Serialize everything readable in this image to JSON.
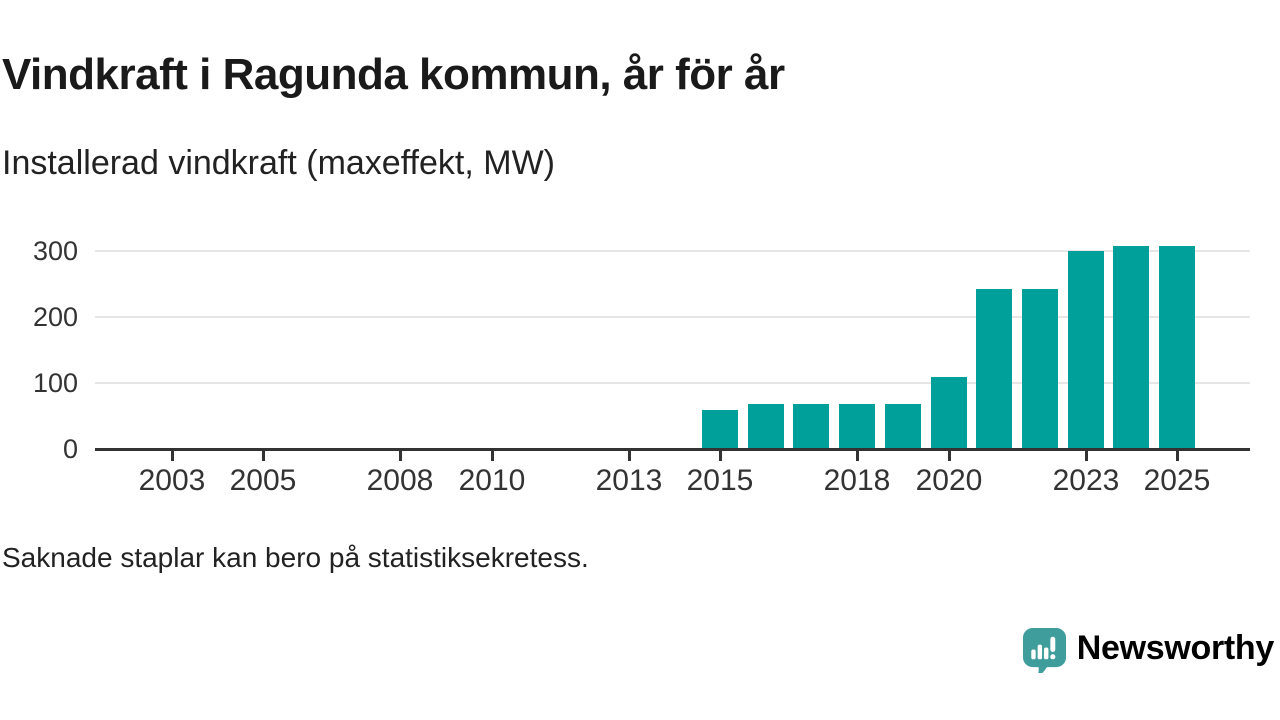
{
  "header": {
    "title": "Vindkraft i Ragunda kommun, år för år",
    "subtitle": "Installerad vindkraft (maxeffekt, MW)"
  },
  "chart_data": {
    "type": "bar",
    "title": "Vindkraft i Ragunda kommun, år för år",
    "subtitle": "Installerad vindkraft (maxeffekt, MW)",
    "unit": "MW",
    "ylabel": "Installerad vindkraft (maxeffekt, MW)",
    "xlabel": "",
    "categories": [
      2002,
      2003,
      2004,
      2005,
      2006,
      2007,
      2008,
      2009,
      2010,
      2011,
      2012,
      2013,
      2014,
      2015,
      2016,
      2017,
      2018,
      2019,
      2020,
      2021,
      2022,
      2023,
      2024,
      2025
    ],
    "values": [
      null,
      null,
      null,
      null,
      null,
      null,
      null,
      null,
      null,
      null,
      null,
      null,
      null,
      59,
      68,
      68,
      68,
      68,
      110,
      243,
      243,
      300,
      308,
      308
    ],
    "x_tick_years": [
      2003,
      2005,
      2008,
      2010,
      2013,
      2015,
      2018,
      2020,
      2023,
      2025
    ],
    "y_ticks": [
      0,
      100,
      200,
      300
    ],
    "ylim": [
      0,
      315
    ],
    "grid": "horizontal-only",
    "legend": "none",
    "bar_color": "#00a09a",
    "missing_note": "Saknade staplar kan bero på statistiksekretess."
  },
  "footer": {
    "note": "Saknade staplar kan bero på statistiksekretess."
  },
  "branding": {
    "name": "Newsworthy",
    "color": "#3f9e9b",
    "icon": "newsworthy-chart-bubble-icon"
  },
  "colors": {
    "bar": "#00a09a",
    "axis": "#333333",
    "grid": "#e6e6e6",
    "title_text": "#1a1a1a",
    "body_text": "#222222",
    "brand_teal": "#3f9e9b"
  }
}
